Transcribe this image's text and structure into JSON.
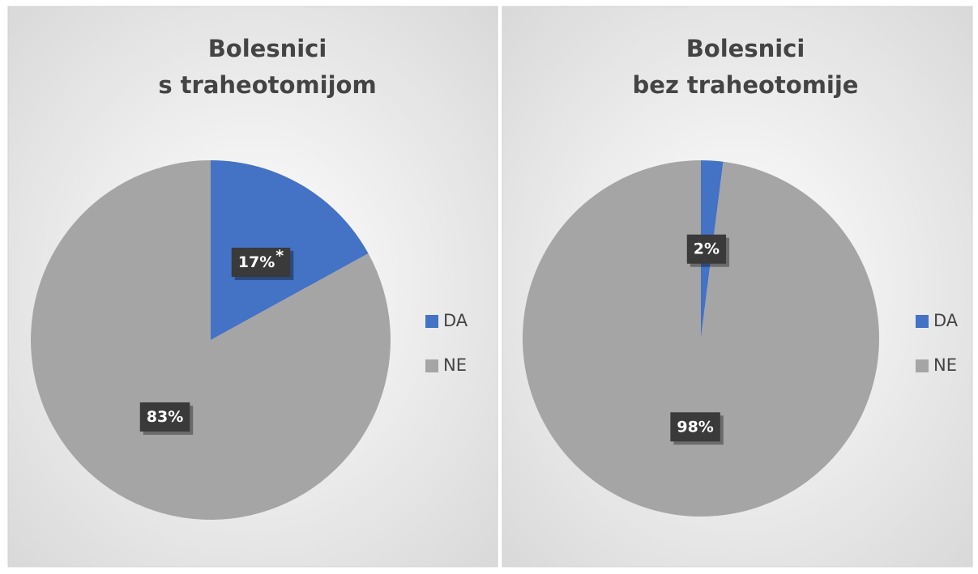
{
  "chart_data": [
    {
      "type": "pie",
      "title": [
        "Bolesnici",
        "s traheotomijom"
      ],
      "categories": [
        "DA",
        "NE"
      ],
      "values": [
        17,
        83
      ],
      "value_labels": [
        "17%",
        "83%"
      ],
      "annotation": "*",
      "colors": [
        "#4472c4",
        "#a5a5a5"
      ],
      "legend": "right"
    },
    {
      "type": "pie",
      "title": [
        "Bolesnici",
        "bez traheotomije"
      ],
      "categories": [
        "DA",
        "NE"
      ],
      "values": [
        2,
        98
      ],
      "value_labels": [
        "2%",
        "98%"
      ],
      "colors": [
        "#4472c4",
        "#a5a5a5"
      ],
      "legend": "right"
    }
  ]
}
